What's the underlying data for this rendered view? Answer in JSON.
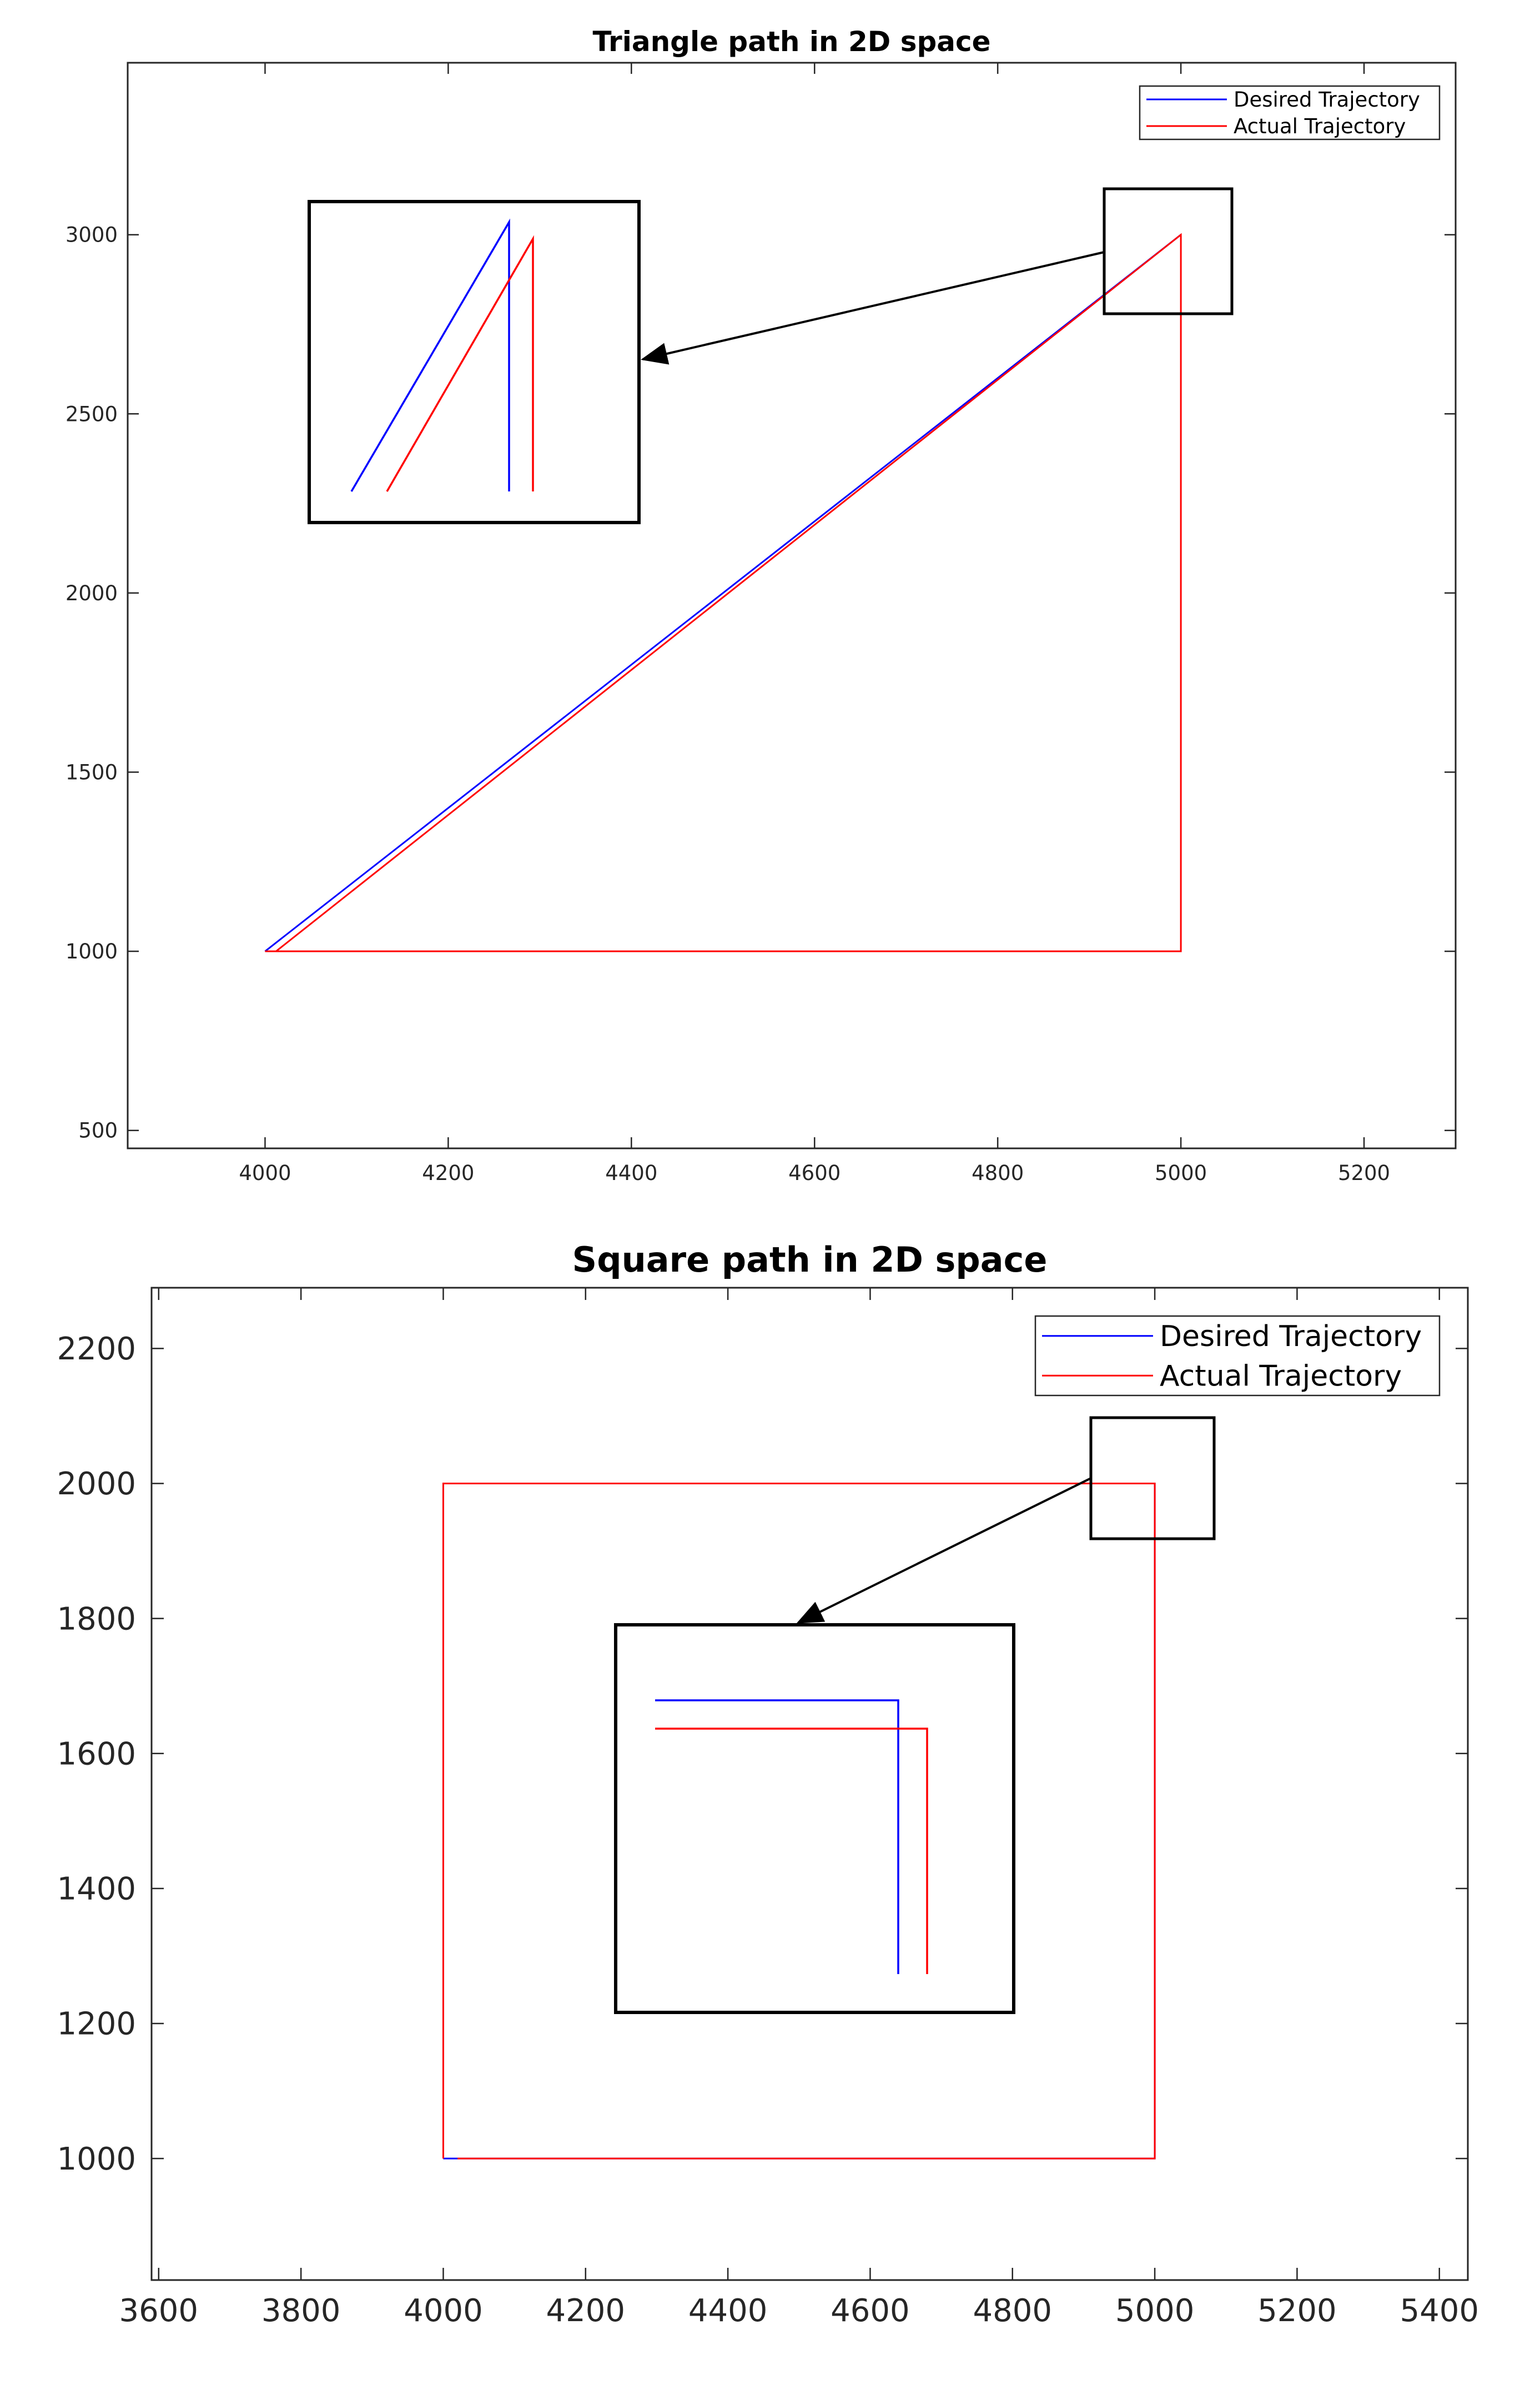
{
  "chart_data": [
    {
      "type": "line",
      "title": "Triangle path in 2D space",
      "xlabel": "",
      "ylabel": "",
      "xlim": [
        3850,
        5300
      ],
      "ylim": [
        450,
        3480
      ],
      "xticks": [
        4000,
        4200,
        4400,
        4600,
        4800,
        5000,
        5200
      ],
      "yticks": [
        500,
        1000,
        1500,
        2000,
        2500,
        3000
      ],
      "xtick_labels": [
        "4000",
        "4200",
        "4400",
        "4600",
        "4800",
        "5000",
        "5200"
      ],
      "ytick_labels": [
        "500",
        "1000",
        "1500",
        "2000",
        "2500",
        "3000"
      ],
      "grid": false,
      "legend_position": "top-right",
      "series": [
        {
          "name": "Desired Trajectory",
          "color": "#0000ff",
          "x": [
            4000,
            5000
          ],
          "y": [
            1000,
            3000
          ]
        },
        {
          "name": "Actual Trajectory",
          "color": "#ff0000",
          "x": [
            4012,
            5000,
            5000,
            4000
          ],
          "y": [
            1000,
            3000,
            1000,
            1000
          ]
        }
      ],
      "annotations": [
        "zoom box at top-right corner (5000, 3000) with magnified inset"
      ]
    },
    {
      "type": "line",
      "title": "Square path in 2D space",
      "xlabel": "",
      "ylabel": "",
      "xlim": [
        3590,
        5440
      ],
      "ylim": [
        820,
        2290
      ],
      "xticks": [
        3600,
        3800,
        4000,
        4200,
        4400,
        4600,
        4800,
        5000,
        5200,
        5400
      ],
      "yticks": [
        1000,
        1200,
        1400,
        1600,
        1800,
        2000,
        2200
      ],
      "xtick_labels": [
        "3600",
        "3800",
        "4000",
        "4200",
        "4400",
        "4600",
        "4800",
        "5000",
        "5200",
        "5400"
      ],
      "ytick_labels": [
        "1000",
        "1200",
        "1400",
        "1600",
        "1800",
        "2000",
        "2200"
      ],
      "grid": false,
      "legend_position": "top-right",
      "series": [
        {
          "name": "Desired Trajectory",
          "color": "#0000ff",
          "x": [
            4000,
            4000,
            5000,
            5000,
            4000
          ],
          "y": [
            1000,
            2000,
            2000,
            1000,
            1000
          ]
        },
        {
          "name": "Actual Trajectory",
          "color": "#ff0000",
          "x": [
            4000,
            4000,
            5000,
            5000,
            4020
          ],
          "y": [
            1000,
            2000,
            2000,
            1000,
            1000
          ]
        }
      ],
      "annotations": [
        "zoom box at top-right corner (5000, 2000) with magnified inset"
      ]
    }
  ]
}
